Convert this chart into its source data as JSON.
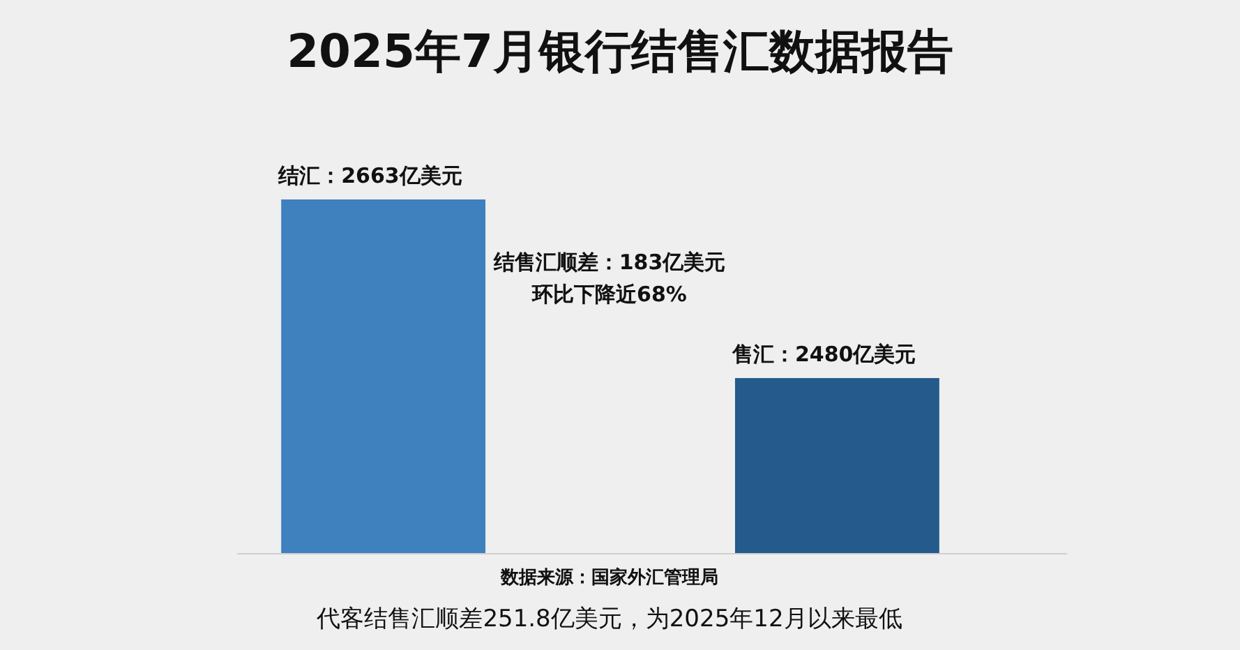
{
  "chart_data": {
    "type": "bar",
    "title": "2025年7月银行结售汇数据报告",
    "categories": [
      null,
      null
    ],
    "values": [
      2663,
      2480
    ],
    "colors": [
      "#3f80bf",
      "#245a8c"
    ],
    "value_labels": [
      "结汇：2663亿美元",
      "售汇：2480亿美元"
    ],
    "ylim": [
      2300,
      2663
    ],
    "annotations": [
      "结售汇顺差：183亿美元",
      "环比下降近68%",
      "数据来源：国家外汇管理局",
      "代客结售汇顺差251.8亿美元，为2025年12月以来最低"
    ]
  }
}
